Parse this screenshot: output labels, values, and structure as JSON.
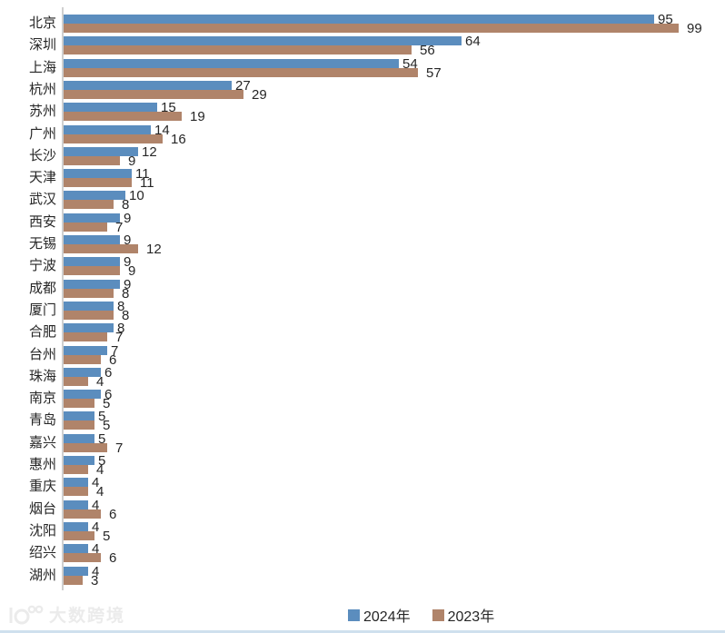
{
  "chart_data": {
    "type": "bar",
    "orientation": "horizontal",
    "title": "",
    "xlabel": "",
    "ylabel": "",
    "xlim": [
      0,
      105
    ],
    "grid": false,
    "value_labels": true,
    "legend_position": "bottom",
    "categories": [
      "北京",
      "深圳",
      "上海",
      "杭州",
      "苏州",
      "广州",
      "长沙",
      "天津",
      "武汉",
      "西安",
      "无锡",
      "宁波",
      "成都",
      "厦门",
      "合肥",
      "台州",
      "珠海",
      "南京",
      "青岛",
      "嘉兴",
      "惠州",
      "重庆",
      "烟台",
      "沈阳",
      "绍兴",
      "湖州"
    ],
    "series": [
      {
        "name": "2024年",
        "color": "#5b8dbe",
        "values": [
          95,
          64,
          54,
          27,
          15,
          14,
          12,
          11,
          10,
          9,
          9,
          9,
          9,
          8,
          8,
          7,
          6,
          6,
          5,
          5,
          5,
          4,
          4,
          4,
          4,
          4
        ]
      },
      {
        "name": "2023年",
        "color": "#b0846a",
        "values": [
          99,
          56,
          57,
          29,
          19,
          16,
          9,
          11,
          8,
          7,
          12,
          9,
          8,
          8,
          7,
          6,
          4,
          5,
          5,
          7,
          4,
          4,
          6,
          5,
          6,
          3
        ]
      }
    ]
  },
  "legend": {
    "items": [
      {
        "label": "2024年",
        "color": "#5b8dbe"
      },
      {
        "label": "2023年",
        "color": "#b0846a"
      }
    ]
  },
  "watermark": {
    "text": "大数跨境"
  },
  "colors": {
    "series_2024": "#5b8dbe",
    "series_2023": "#b0846a",
    "axis_line": "#cfcfcf",
    "label_text": "#262626",
    "watermark": "#ebebeb",
    "bottom_strip": "#cfe0ee"
  }
}
